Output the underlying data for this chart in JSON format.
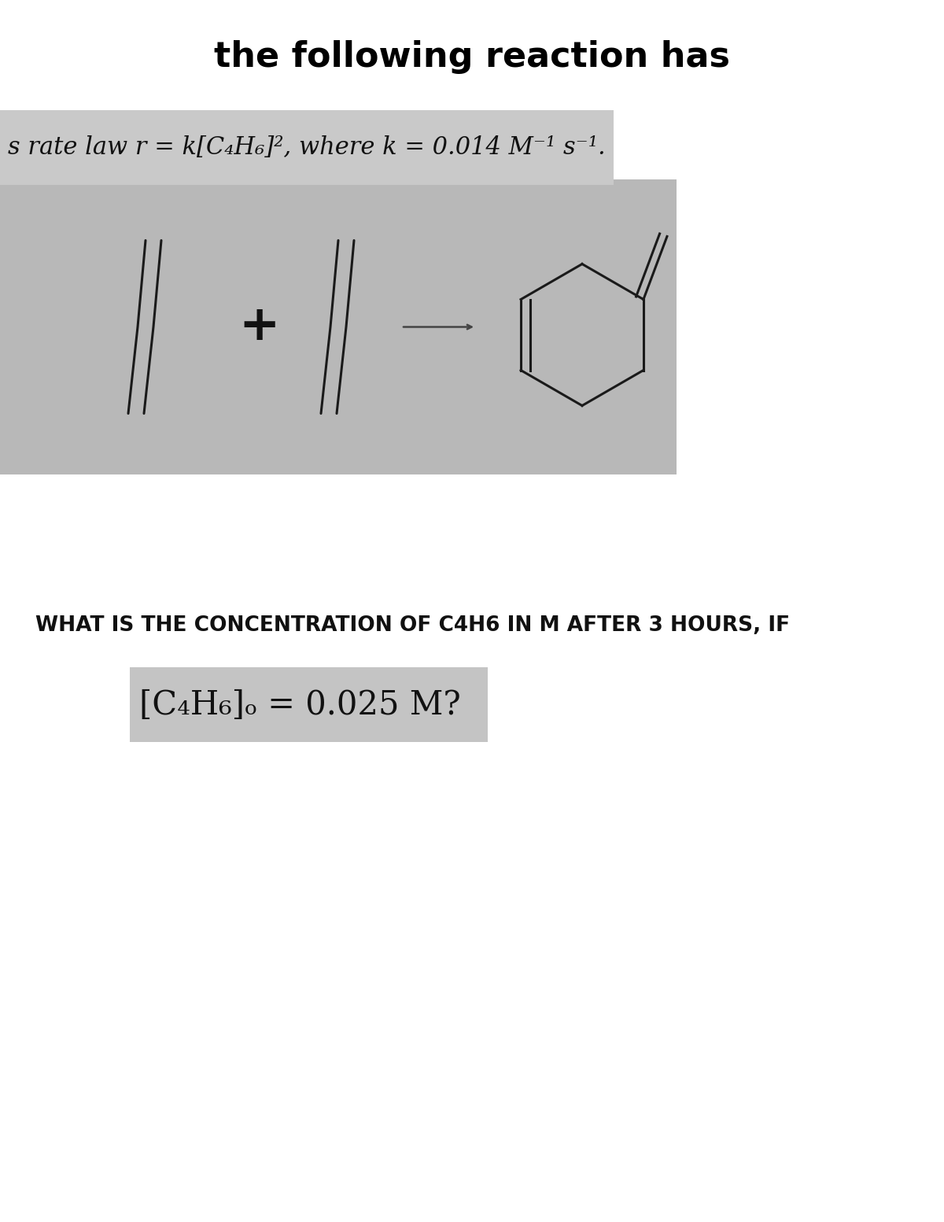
{
  "title": "the following reaction has",
  "title_fontsize": 32,
  "title_fontweight": "bold",
  "title_color": "#000000",
  "bg_color": "#ffffff",
  "card1_bg": "#c9c9c9",
  "card1_text": "s rate law r = k[C₄H₆]², where k = 0.014 M⁻¹ s⁻¹.",
  "card1_fontsize": 22,
  "card2_bg": "#b8b8b8",
  "question_text": "WHAT IS THE CONCENTRATION OF C4H6 IN M AFTER 3 HOURS, IF",
  "question_fontsize": 19,
  "question_fontweight": "bold",
  "card3_bg": "#c4c4c4",
  "card3_text": "[C₄H₆]ₒ = 0.025 M?",
  "card3_fontsize": 30,
  "fig_width": 12.0,
  "fig_height": 15.53,
  "line_color": "#1a1a1a",
  "line_lw": 2.2
}
